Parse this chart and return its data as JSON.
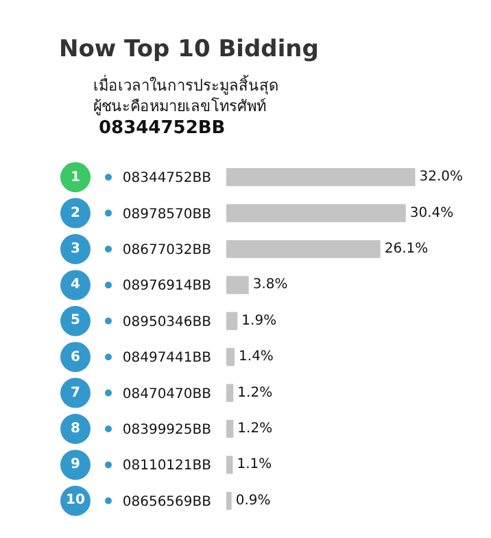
{
  "chart_data": {
    "type": "bar",
    "orientation": "horizontal",
    "title": "Now Top 10 Bidding",
    "subtitle": "เมื่อเวลาในการประมูลสิ้นสุด\nผู้ชนะคือหมายเลขโทรศัพท์",
    "categories": [
      "08344752BB",
      "08978570BB",
      "08677032BB",
      "08976914BB",
      "08950346BB",
      "08497441BB",
      "08470470BB",
      "08399925BB",
      "08110121BB",
      "08656569BB"
    ],
    "values": [
      32.0,
      30.4,
      26.1,
      3.8,
      1.9,
      1.4,
      1.2,
      1.2,
      1.1,
      0.9
    ],
    "value_labels": [
      "32.0%",
      "30.4%",
      "26.1%",
      "3.8%",
      "1.9%",
      "1.4%",
      "1.2%",
      "1.2%",
      "1.1%",
      "0.9%"
    ],
    "color": "#c4c4c4",
    "annotations": [
      "08344752BB",
      "1",
      "2",
      "3",
      "4",
      "5",
      "6",
      "7",
      "8",
      "9",
      "10"
    ]
  }
}
